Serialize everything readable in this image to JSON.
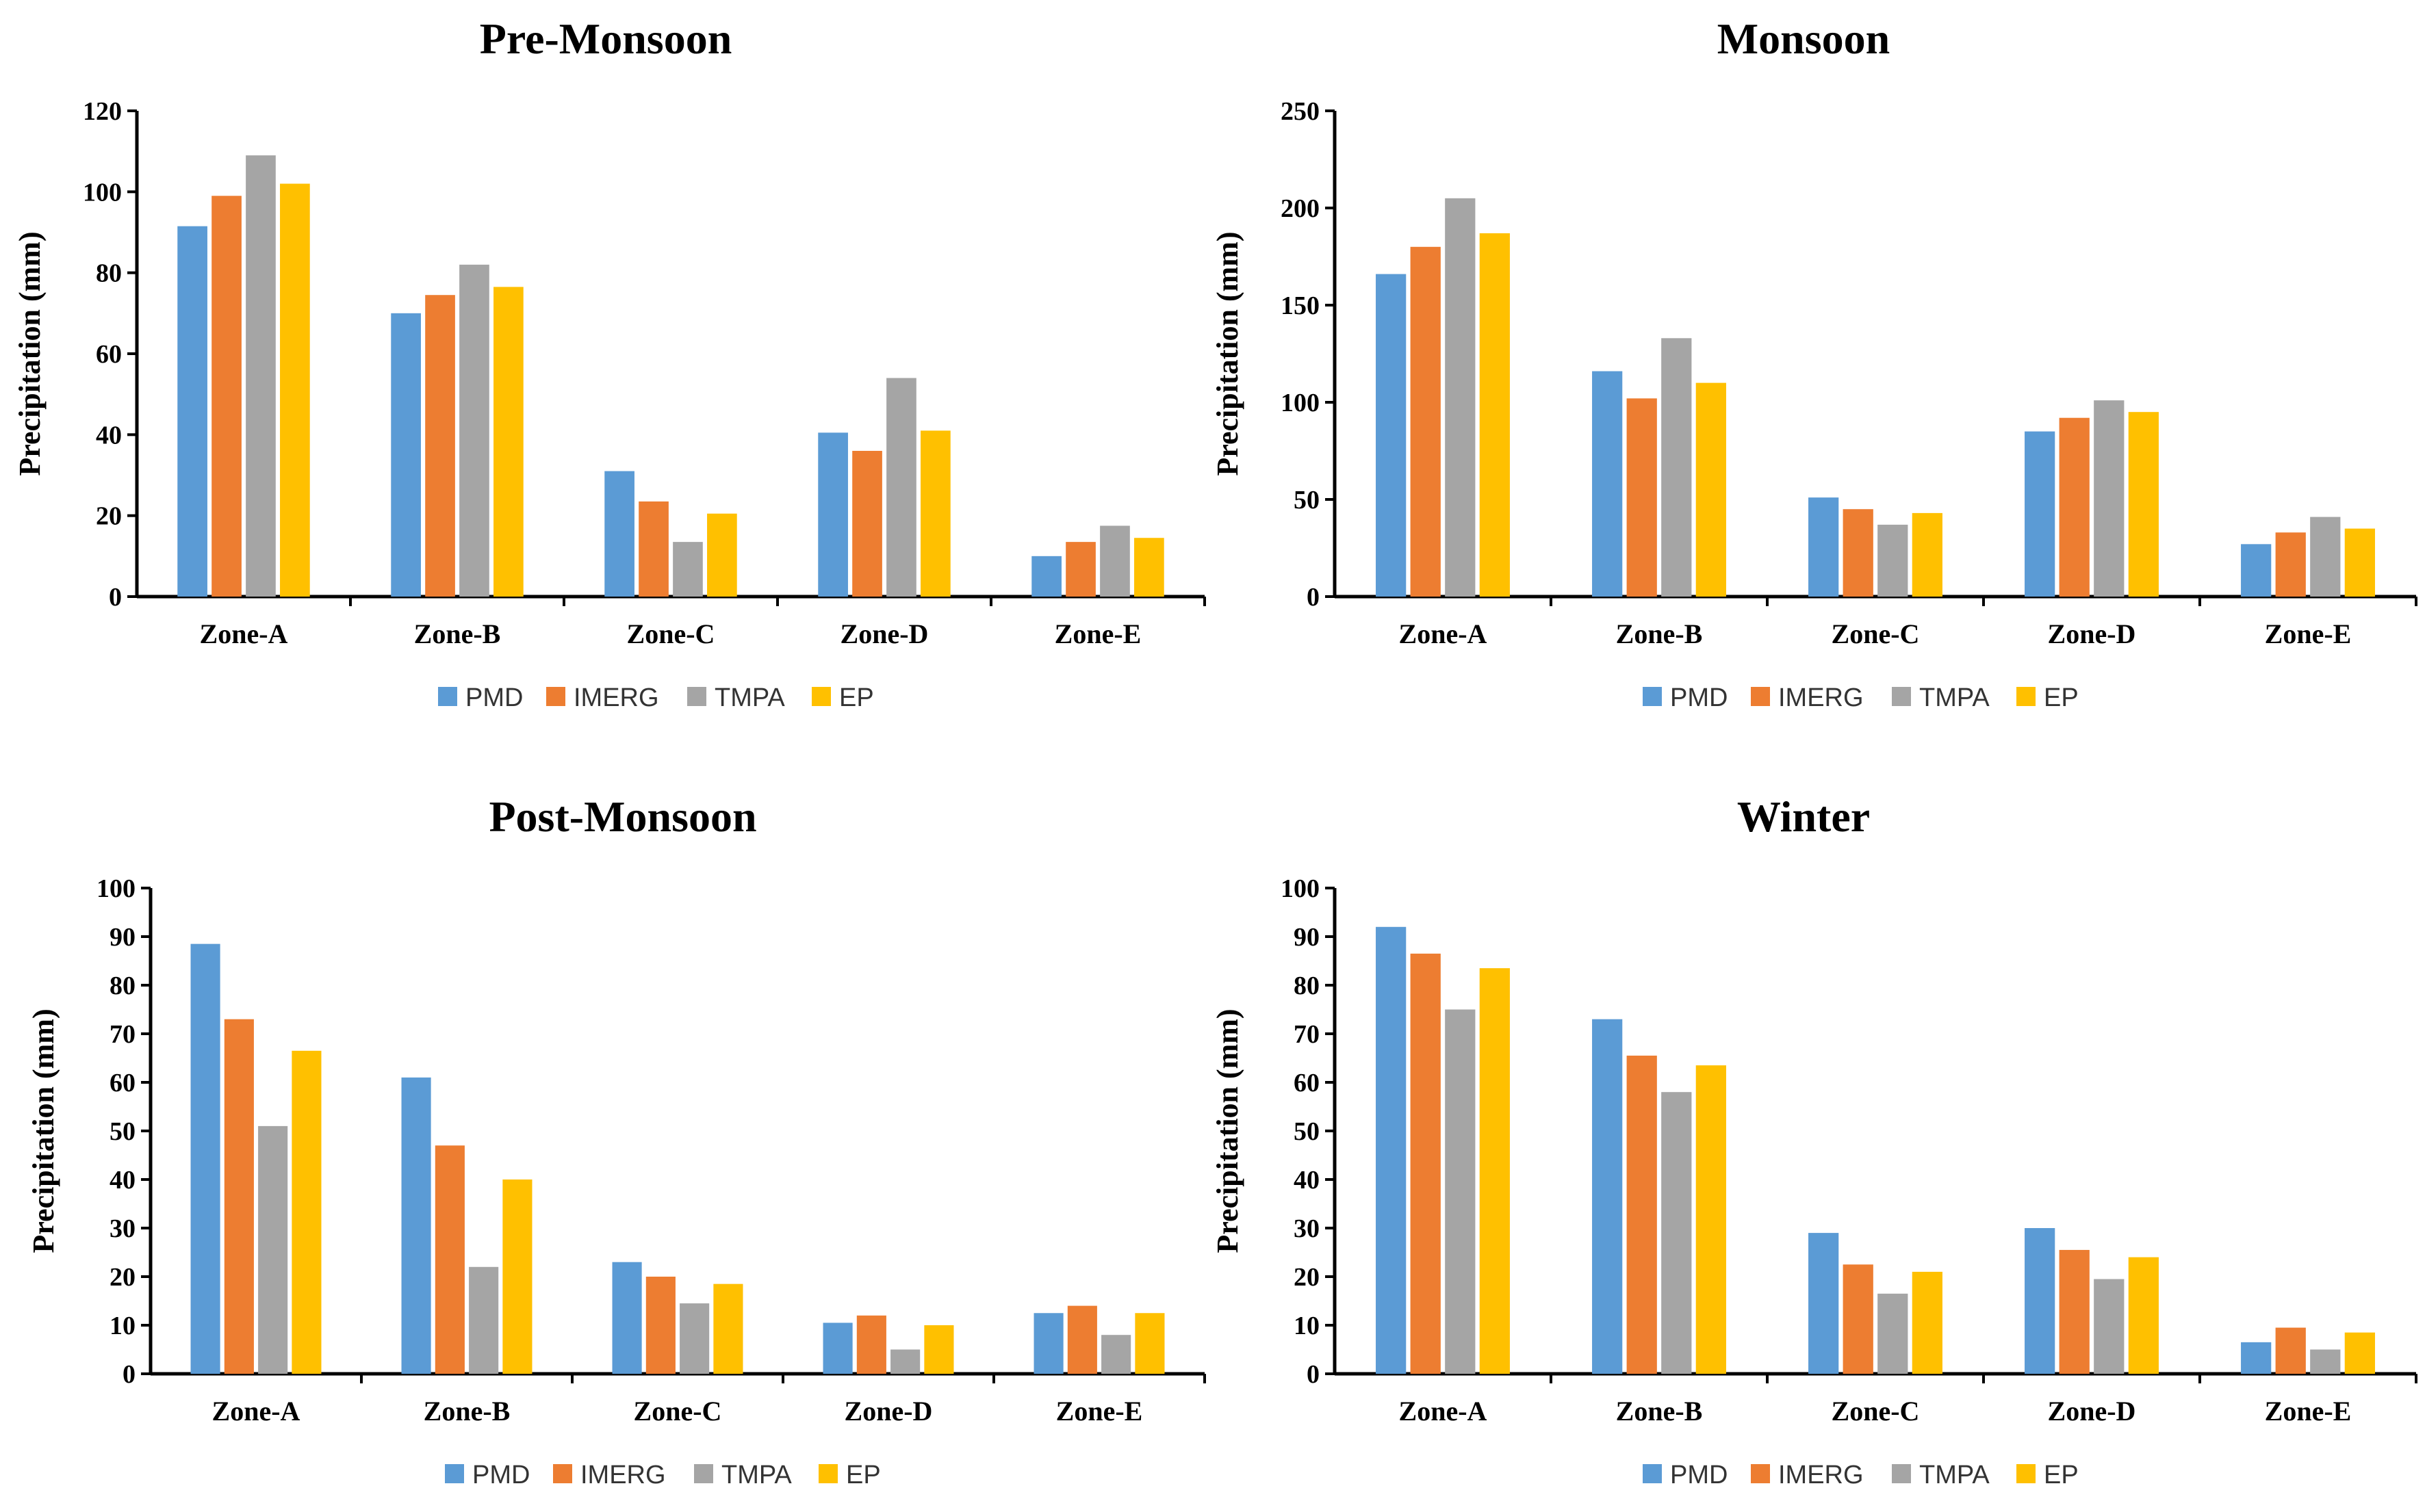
{
  "legend": [
    "PMD",
    "IMERG",
    "TMPA",
    "EP"
  ],
  "colors": [
    "#5b9bd5",
    "#ed7d31",
    "#a5a5a5",
    "#ffc000"
  ],
  "chart_data": [
    {
      "type": "bar",
      "title": "Pre-Monsoon",
      "ylabel": "Precipitation (mm)",
      "xlabel": "",
      "categories": [
        "Zone-A",
        "Zone-B",
        "Zone-C",
        "Zone-D",
        "Zone-E"
      ],
      "ylim": [
        0,
        120
      ],
      "yticks": [
        0,
        20,
        40,
        60,
        80,
        100,
        120
      ],
      "series": [
        {
          "name": "PMD",
          "values": [
            91.5,
            70,
            31,
            40.5,
            10
          ]
        },
        {
          "name": "IMERG",
          "values": [
            99,
            74.5,
            23.5,
            36,
            13.5
          ]
        },
        {
          "name": "TMPA",
          "values": [
            109,
            82,
            13.5,
            54,
            17.5
          ]
        },
        {
          "name": "EP",
          "values": [
            102,
            76.5,
            20.5,
            41,
            14.5
          ]
        }
      ]
    },
    {
      "type": "bar",
      "title": "Monsoon",
      "ylabel": "Precipitation (mm)",
      "xlabel": "",
      "categories": [
        "Zone-A",
        "Zone-B",
        "Zone-C",
        "Zone-D",
        "Zone-E"
      ],
      "ylim": [
        0,
        250
      ],
      "yticks": [
        0,
        50,
        100,
        150,
        200,
        250
      ],
      "series": [
        {
          "name": "PMD",
          "values": [
            166,
            116,
            51,
            85,
            27
          ]
        },
        {
          "name": "IMERG",
          "values": [
            180,
            102,
            45,
            92,
            33
          ]
        },
        {
          "name": "TMPA",
          "values": [
            205,
            133,
            37,
            101,
            41
          ]
        },
        {
          "name": "EP",
          "values": [
            187,
            110,
            43,
            95,
            35
          ]
        }
      ]
    },
    {
      "type": "bar",
      "title": "Post-Monsoon",
      "ylabel": "Precipitation (mm)",
      "xlabel": "",
      "categories": [
        "Zone-A",
        "Zone-B",
        "Zone-C",
        "Zone-D",
        "Zone-E"
      ],
      "ylim": [
        0,
        100
      ],
      "yticks": [
        0,
        10,
        20,
        30,
        40,
        50,
        60,
        70,
        80,
        90,
        100
      ],
      "series": [
        {
          "name": "PMD",
          "values": [
            88.5,
            61,
            23,
            10.5,
            12.5
          ]
        },
        {
          "name": "IMERG",
          "values": [
            73,
            47,
            20,
            12,
            14
          ]
        },
        {
          "name": "TMPA",
          "values": [
            51,
            22,
            14.5,
            5,
            8
          ]
        },
        {
          "name": "EP",
          "values": [
            66.5,
            40,
            18.5,
            10,
            12.5
          ]
        }
      ]
    },
    {
      "type": "bar",
      "title": "Winter",
      "ylabel": "Precipitation (mm)",
      "xlabel": "",
      "categories": [
        "Zone-A",
        "Zone-B",
        "Zone-C",
        "Zone-D",
        "Zone-E"
      ],
      "ylim": [
        0,
        100
      ],
      "yticks": [
        0,
        10,
        20,
        30,
        40,
        50,
        60,
        70,
        80,
        90,
        100
      ],
      "series": [
        {
          "name": "PMD",
          "values": [
            92,
            73,
            29,
            30,
            6.5
          ]
        },
        {
          "name": "IMERG",
          "values": [
            86.5,
            65.5,
            22.5,
            25.5,
            9.5
          ]
        },
        {
          "name": "TMPA",
          "values": [
            75,
            58,
            16.5,
            19.5,
            5
          ]
        },
        {
          "name": "EP",
          "values": [
            83.5,
            63.5,
            21,
            24,
            8.5
          ]
        }
      ]
    }
  ]
}
